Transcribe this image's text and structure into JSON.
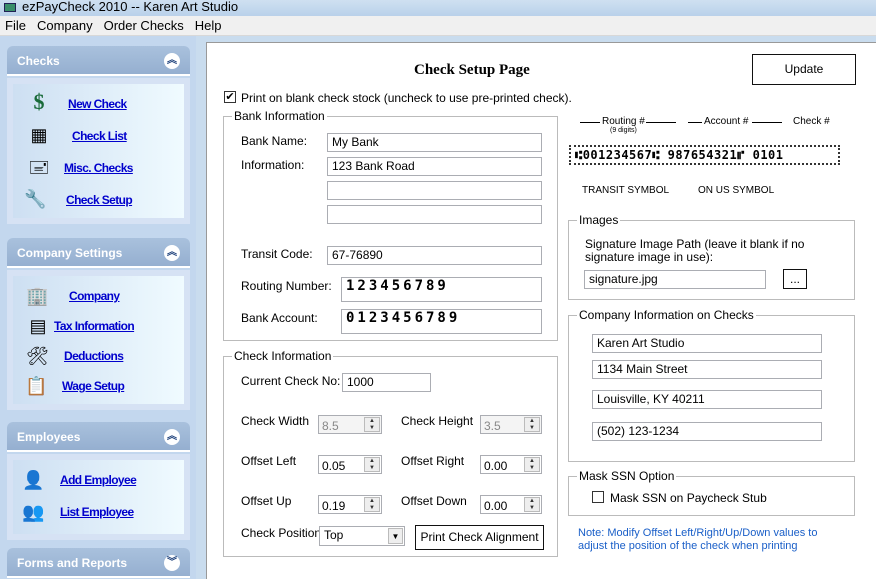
{
  "window": {
    "title": "ezPayCheck 2010 -- Karen Art Studio"
  },
  "menu": [
    "File",
    "Company",
    "Order Checks",
    "Help"
  ],
  "sidebar": {
    "checks": {
      "title": "Checks",
      "items": [
        "New Check",
        "Check List",
        "Misc. Checks",
        "Check Setup"
      ]
    },
    "company_settings": {
      "title": "Company Settings",
      "items": [
        "Company",
        "Tax Information",
        "Deductions",
        "Wage Setup"
      ]
    },
    "employees": {
      "title": "Employees",
      "items": [
        "Add Employee",
        "List Employee"
      ]
    },
    "forms": {
      "title": "Forms and Reports"
    }
  },
  "page": {
    "title": "Check Setup Page",
    "update_label": "Update",
    "blank_stock": {
      "label": "Print on blank check stock (uncheck to use pre-printed check).",
      "checked": true
    },
    "bank": {
      "legend": "Bank Information",
      "name_label": "Bank Name:",
      "name": "My Bank",
      "info_label": "Information:",
      "info": [
        "123 Bank Road",
        "",
        ""
      ],
      "transit_label": "Transit Code:",
      "transit": "67-76890",
      "routing_label": "Routing Number:",
      "routing": "123456789",
      "account_label": "Bank Account:",
      "account": "0123456789"
    },
    "check": {
      "legend": "Check Information",
      "current_label": "Current Check No:",
      "current": "1000",
      "width_label": "Check Width",
      "width": "8.5",
      "height_label": "Check Height",
      "height": "3.5",
      "left_label": "Offset Left",
      "left": "0.05",
      "right_label": "Offset Right",
      "right": "0.00",
      "up_label": "Offset Up",
      "up": "0.19",
      "down_label": "Offset Down",
      "down": "0.00",
      "position_label": "Check Position",
      "position": "Top",
      "align_label": "Print Check Alignment"
    },
    "diagram": {
      "routing": "Routing #",
      "digits": "(9 digits)",
      "account": "Account #",
      "checkno": "Check #",
      "micr": "⑆001234567⑆ 987654321⑈ 0101",
      "transit": "TRANSIT SYMBOL",
      "onus": "ON US SYMBOL"
    },
    "images": {
      "legend": "Images",
      "label": "Signature Image Path (leave it blank if no signature image in use):",
      "path": "signature.jpg",
      "browse": "..."
    },
    "company": {
      "legend": "Company Information on Checks",
      "lines": [
        "Karen Art Studio",
        "1134 Main Street",
        "Louisville, KY 40211",
        "(502) 123-1234"
      ]
    },
    "mask": {
      "legend": "Mask SSN Option",
      "label": "Mask SSN on Paycheck Stub",
      "checked": false
    },
    "note": "Note: Modify Offset Left/Right/Up/Down values to adjust the position of  the check when printing"
  },
  "colors": {
    "link": "#0000cc",
    "note": "#1a5fc8",
    "sidebar": "#c3d7ee"
  }
}
